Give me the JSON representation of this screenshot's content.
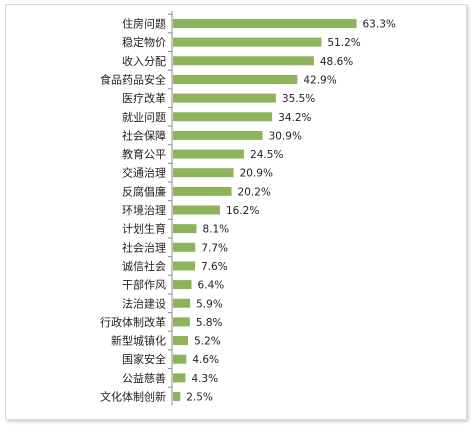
{
  "chart_data": {
    "type": "bar",
    "orientation": "horizontal",
    "categories": [
      "住房问题",
      "稳定物价",
      "收入分配",
      "食品药品安全",
      "医疗改革",
      "就业问题",
      "社会保障",
      "教育公平",
      "交通治理",
      "反腐倡廉",
      "环境治理",
      "计划生育",
      "社会治理",
      "诚信社会",
      "干部作风",
      "法治建设",
      "行政体制改革",
      "新型城镇化",
      "国家安全",
      "公益慈善",
      "文化体制创新"
    ],
    "values": [
      63.3,
      51.2,
      48.6,
      42.9,
      35.5,
      34.2,
      30.9,
      24.5,
      20.9,
      20.2,
      16.2,
      8.1,
      7.7,
      7.6,
      6.4,
      5.9,
      5.8,
      5.2,
      4.6,
      4.3,
      2.5
    ],
    "value_labels": [
      "63.3%",
      "51.2%",
      "48.6%",
      "42.9%",
      "35.5%",
      "34.2%",
      "30.9%",
      "24.5%",
      "20.9%",
      "20.2%",
      "16.2%",
      "8.1%",
      "7.7%",
      "7.6%",
      "6.4%",
      "5.9%",
      "5.8%",
      "5.2%",
      "4.6%",
      "4.3%",
      "2.5%"
    ],
    "title": "",
    "xlabel": "",
    "ylabel": "",
    "xlim": [
      0,
      100
    ],
    "grid": false,
    "legend": "none",
    "bar_color": "#8db45a",
    "axis_color": "#8c8c8c"
  }
}
